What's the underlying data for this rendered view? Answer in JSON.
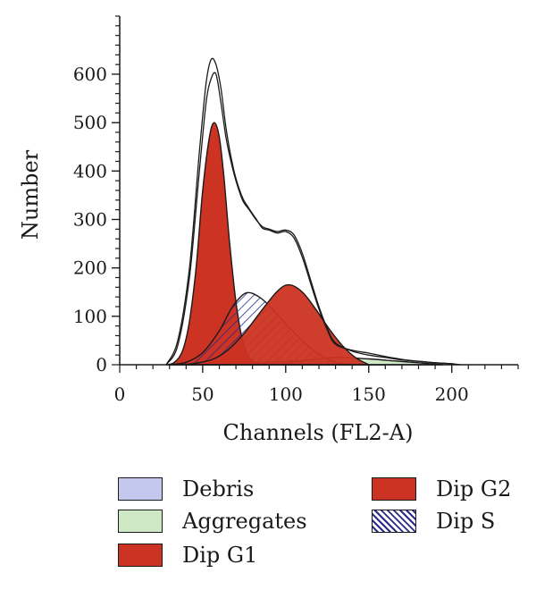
{
  "chart_data": {
    "type": "area",
    "title": "",
    "xlabel": "Channels (FL2-A)",
    "ylabel": "Number",
    "xlim": [
      0,
      240
    ],
    "ylim": [
      0,
      720
    ],
    "x_ticks": [
      0,
      50,
      100,
      150,
      200
    ],
    "y_ticks": [
      0,
      100,
      200,
      300,
      400,
      500,
      600
    ],
    "series": [
      {
        "name": "Debris",
        "color": "#c5c8ee",
        "x": [
          50,
          70,
          90,
          105,
          120,
          140,
          160
        ],
        "y": [
          0,
          2,
          5,
          8,
          6,
          3,
          0
        ]
      },
      {
        "name": "Aggregates",
        "color": "#cfe8c6",
        "x": [
          95,
          110,
          130,
          150,
          165,
          180,
          195
        ],
        "y": [
          0,
          8,
          15,
          12,
          8,
          4,
          0
        ]
      },
      {
        "name": "Dip G1",
        "color": "#cc3322",
        "x": [
          28,
          33,
          38,
          42,
          46,
          50,
          54,
          57,
          60,
          63,
          66,
          70,
          74,
          78,
          82,
          86
        ],
        "y": [
          0,
          5,
          30,
          90,
          200,
          360,
          470,
          500,
          470,
          380,
          260,
          130,
          50,
          15,
          3,
          0
        ]
      },
      {
        "name": "Dip S",
        "color": "#2a2a8a",
        "x": [
          30,
          40,
          50,
          60,
          68,
          76,
          84,
          92,
          100,
          110,
          120,
          130,
          138
        ],
        "y": [
          0,
          5,
          25,
          70,
          120,
          148,
          140,
          115,
          85,
          50,
          22,
          5,
          0
        ]
      },
      {
        "name": "Dip G2",
        "color": "#cc3322",
        "x": [
          40,
          55,
          65,
          75,
          85,
          95,
          102,
          110,
          118,
          126,
          134,
          142,
          150
        ],
        "y": [
          0,
          10,
          30,
          65,
          110,
          152,
          165,
          150,
          115,
          75,
          40,
          15,
          0
        ]
      },
      {
        "name": "",
        "color": "#1a1a1a",
        "x": [
          28,
          35,
          42,
          48,
          52,
          55,
          58,
          61,
          64,
          67,
          70,
          74,
          78,
          82,
          86,
          90,
          95,
          100,
          105,
          110,
          115,
          120,
          125,
          130,
          140,
          150,
          160,
          170,
          180,
          190,
          200,
          205
        ],
        "y": [
          0,
          40,
          180,
          400,
          540,
          590,
          600,
          540,
          470,
          420,
          380,
          340,
          320,
          300,
          285,
          280,
          275,
          278,
          268,
          230,
          175,
          120,
          75,
          45,
          28,
          20,
          15,
          10,
          7,
          4,
          2,
          0
        ]
      },
      {
        "name": "",
        "color": "#1a1a1a",
        "x": [
          28,
          35,
          42,
          48,
          52,
          55,
          58,
          61,
          64,
          67,
          70,
          74,
          78,
          82,
          86,
          90,
          95,
          100,
          105,
          110,
          115,
          120,
          125,
          130,
          140,
          150,
          160,
          170,
          180,
          190,
          200,
          205
        ],
        "y": [
          0,
          50,
          200,
          440,
          580,
          630,
          620,
          570,
          490,
          430,
          385,
          345,
          322,
          302,
          282,
          278,
          272,
          275,
          262,
          222,
          168,
          115,
          72,
          42,
          30,
          24,
          17,
          11,
          7,
          4,
          2,
          0
        ]
      }
    ],
    "legend": {
      "placement": "bottom",
      "entries": [
        "Debris",
        "Aggregates",
        "Dip G1",
        "Dip G2",
        "Dip S"
      ]
    },
    "grid": false
  }
}
